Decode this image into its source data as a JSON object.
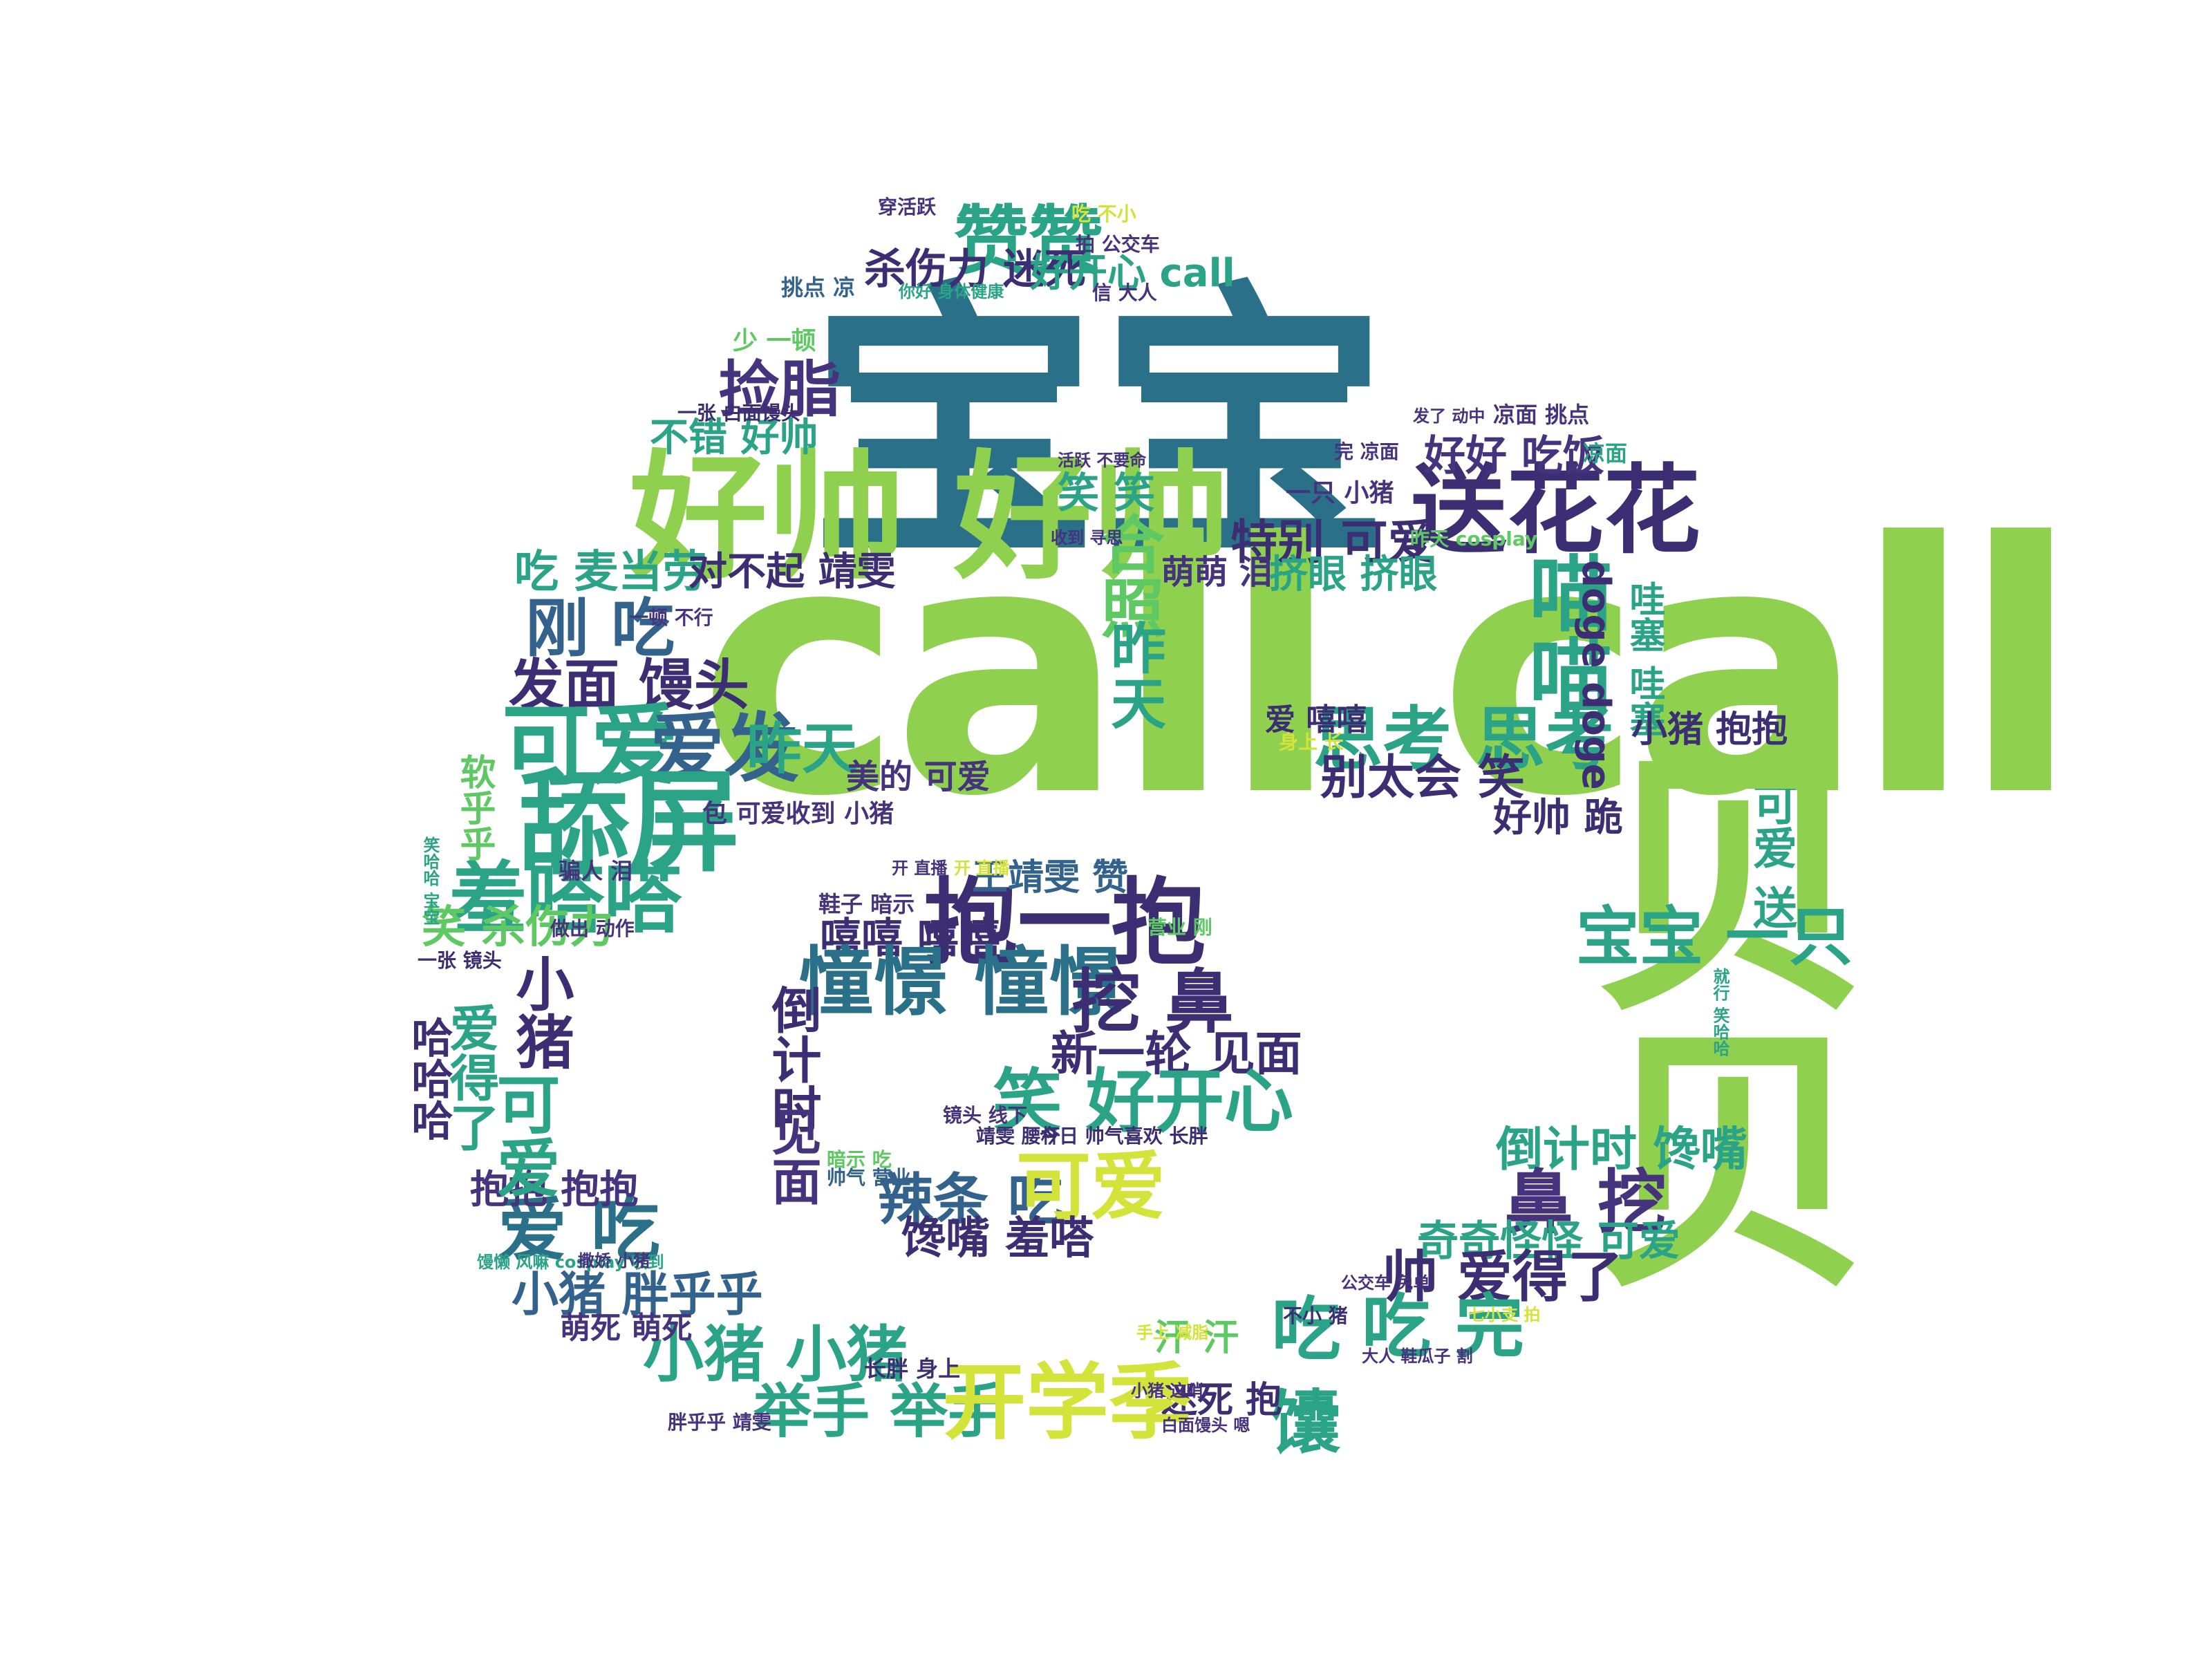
{
  "words": [
    {
      "text": "宝宝",
      "fs": 210,
      "c": "c1"
    },
    {
      "text": "call call",
      "fs": 250,
      "c": "c2"
    },
    {
      "text": "好帅 好帅",
      "fs": 110,
      "c": "c2"
    },
    {
      "text": "赞赞",
      "fs": 58,
      "c": "c4"
    },
    {
      "text": "杀伤力 迷死",
      "fs": 34,
      "c": "c3"
    },
    {
      "text": "好开心 call",
      "fs": 32,
      "c": "c4"
    },
    {
      "text": "捡脂",
      "fs": 48,
      "c": "c6"
    },
    {
      "text": "不错 好帅",
      "fs": 32,
      "c": "c4"
    },
    {
      "text": "吃 麦当劳",
      "fs": 34,
      "c": "c4"
    },
    {
      "text": "对不起 靖雯",
      "fs": 32,
      "c": "c3"
    },
    {
      "text": "刚 吃",
      "fs": 50,
      "c": "c8"
    },
    {
      "text": "发面 馒头",
      "fs": 44,
      "c": "c3"
    },
    {
      "text": "可爱",
      "fs": 70,
      "c": "c4"
    },
    {
      "text": "爱发",
      "fs": 62,
      "c": "c8"
    },
    {
      "text": "昨天",
      "fs": 44,
      "c": "c4"
    },
    {
      "text": "舔屏",
      "fs": 90,
      "c": "c4"
    },
    {
      "text": "羞嗒嗒",
      "fs": 66,
      "c": "c4"
    },
    {
      "text": "笑 杀伤力",
      "fs": 38,
      "c": "c7"
    },
    {
      "text": "美的 可爱",
      "fs": 28,
      "c": "c6"
    },
    {
      "text": "包 可爱收到 小猪",
      "fs": 20,
      "c": "c6"
    },
    {
      "text": "送花花",
      "fs": 78,
      "c": "c3"
    },
    {
      "text": "好好 吃饭",
      "fs": 38,
      "c": "c6"
    },
    {
      "text": "笑 笑",
      "fs": 34,
      "c": "c4"
    },
    {
      "text": "特别 可爱",
      "fs": 40,
      "c": "c3"
    },
    {
      "text": "萌萌 泪",
      "fs": 28,
      "c": "c6"
    },
    {
      "text": "挤眼 挤眼",
      "fs": 34,
      "c": "c4"
    },
    {
      "text": "喵喵",
      "fs": 66,
      "c": "c4"
    },
    {
      "text": "合照",
      "fs": 52,
      "c": "c7"
    },
    {
      "text": "昨天",
      "fs": 46,
      "c": "c4"
    },
    {
      "text": "思考 思考",
      "fs": 56,
      "c": "c4"
    },
    {
      "text": "别太会 笑",
      "fs": 40,
      "c": "c3"
    },
    {
      "text": "爱 嘻嘻",
      "fs": 30,
      "c": "c3"
    },
    {
      "text": "doge doge",
      "fs": 34,
      "c": "c3"
    },
    {
      "text": "哇塞 哇塞",
      "fs": 30,
      "c": "c4"
    },
    {
      "text": "小猪 抱抱",
      "fs": 30,
      "c": "c3"
    },
    {
      "text": "好帅 跪",
      "fs": 32,
      "c": "c3"
    },
    {
      "text": "可爱 送",
      "fs": 36,
      "c": "c4"
    },
    {
      "text": "贝贝",
      "fs": 210,
      "c": "c2"
    },
    {
      "text": "宝宝 一只",
      "fs": 50,
      "c": "c4"
    },
    {
      "text": "倒计时 馋嘴",
      "fs": 38,
      "c": "c4"
    },
    {
      "text": "鼻 挖",
      "fs": 56,
      "c": "c6"
    },
    {
      "text": "奇奇怪怪 可爱",
      "fs": 34,
      "c": "c4"
    },
    {
      "text": "帅 爱得了",
      "fs": 44,
      "c": "c3"
    },
    {
      "text": "吃 完",
      "fs": 56,
      "c": "c4"
    },
    {
      "text": "吃 馕",
      "fs": 56,
      "c": "c4"
    },
    {
      "text": "汗 汗",
      "fs": 30,
      "c": "c7"
    },
    {
      "text": "迷死 抱",
      "fs": 30,
      "c": "c3"
    },
    {
      "text": "抱一抱",
      "fs": 76,
      "c": "c3"
    },
    {
      "text": "王靖雯 赞",
      "fs": 30,
      "c": "c8"
    },
    {
      "text": "嘻嘻 嘻嘻",
      "fs": 34,
      "c": "c3"
    },
    {
      "text": "憧憬 憧憬",
      "fs": 60,
      "c": "c1"
    },
    {
      "text": "挖 鼻",
      "fs": 56,
      "c": "c3"
    },
    {
      "text": "新一轮 见面",
      "fs": 40,
      "c": "c3"
    },
    {
      "text": "笑 好开心",
      "fs": 56,
      "c": "c4"
    },
    {
      "text": "倒计时",
      "fs": 40,
      "c": "c3"
    },
    {
      "text": "见面",
      "fs": 40,
      "c": "c6"
    },
    {
      "text": "辣条 吃",
      "fs": 44,
      "c": "c8"
    },
    {
      "text": "可爱",
      "fs": 60,
      "c": "c5"
    },
    {
      "text": "馋嘴 羞嗒",
      "fs": 36,
      "c": "c3"
    },
    {
      "text": "小猪 胖乎乎",
      "fs": 38,
      "c": "c8"
    },
    {
      "text": "小猪 小猪",
      "fs": 50,
      "c": "c4"
    },
    {
      "text": "举手 举手",
      "fs": 48,
      "c": "c4"
    },
    {
      "text": "开学季",
      "fs": 66,
      "c": "c5"
    },
    {
      "text": "爱 吃",
      "fs": 56,
      "c": "c1"
    },
    {
      "text": "抱抱 抱抱",
      "fs": 32,
      "c": "c6"
    },
    {
      "text": "萌死 萌死",
      "fs": 26,
      "c": "c6"
    },
    {
      "text": "小猪",
      "fs": 48,
      "c": "c3"
    },
    {
      "text": "可爱",
      "fs": 54,
      "c": "c4"
    },
    {
      "text": "爱得了",
      "fs": 40,
      "c": "c4"
    },
    {
      "text": "哈哈哈",
      "fs": 36,
      "c": "c3"
    },
    {
      "text": "软乎乎",
      "fs": 30,
      "c": "c7"
    },
    {
      "text": "穿活跃",
      "fs": 16,
      "c": "c6"
    },
    {
      "text": "吃 不小",
      "fs": 16,
      "c": "c5"
    },
    {
      "text": "拍 公交车",
      "fs": 16,
      "c": "c6"
    },
    {
      "text": "挑点 凉",
      "fs": 18,
      "c": "c8"
    },
    {
      "text": "你好 身体健康",
      "fs": 14,
      "c": "c4"
    },
    {
      "text": "信 大人",
      "fs": 16,
      "c": "c6"
    },
    {
      "text": "少 一顿",
      "fs": 20,
      "c": "c7"
    },
    {
      "text": "凉面 挑点",
      "fs": 18,
      "c": "c6"
    },
    {
      "text": "发了 动中",
      "fs": 14,
      "c": "c6"
    },
    {
      "text": "一张 白面馒头",
      "fs": 16,
      "c": "c3"
    },
    {
      "text": "凉面",
      "fs": 18,
      "c": "c4"
    },
    {
      "text": "完 凉面",
      "fs": 16,
      "c": "c6"
    },
    {
      "text": "活跃 不要命",
      "fs": 14,
      "c": "c6"
    },
    {
      "text": "收到 寻思",
      "fs": 14,
      "c": "c6"
    },
    {
      "text": "昨天 cosplay",
      "fs": 16,
      "c": "c7"
    },
    {
      "text": "一只 小猪",
      "fs": 20,
      "c": "c6"
    },
    {
      "text": "一顿 不行",
      "fs": 16,
      "c": "c6"
    },
    {
      "text": "大人 鞋瓜子 割",
      "fs": 14,
      "c": "c6"
    },
    {
      "text": "公交车 免单",
      "fs": 14,
      "c": "c6"
    },
    {
      "text": "身上 长",
      "fs": 16,
      "c": "c5"
    },
    {
      "text": "就行 笑哈哈",
      "fs": 14,
      "c": "c4"
    },
    {
      "text": "鞋子 暗示",
      "fs": 20,
      "c": "c6"
    },
    {
      "text": "开 直播",
      "fs": 16,
      "c": "c5"
    },
    {
      "text": "营业 刚",
      "fs": 18,
      "c": "c7"
    },
    {
      "text": "靖雯 腰杆",
      "fs": 16,
      "c": "c3"
    },
    {
      "text": "今日 帅气喜欢 长胖",
      "fs": 16,
      "c": "c3"
    },
    {
      "text": "镜头 线下",
      "fs": 16,
      "c": "c6"
    },
    {
      "text": "帅气 营业",
      "fs": 18,
      "c": "c8"
    },
    {
      "text": "暗示 吃",
      "fs": 18,
      "c": "c7"
    },
    {
      "text": "胖乎乎 靖雯",
      "fs": 16,
      "c": "c6"
    },
    {
      "text": "长胖 身上",
      "fs": 18,
      "c": "c3"
    },
    {
      "text": "白面馒头 嗯",
      "fs": 14,
      "c": "c6"
    },
    {
      "text": "小猪 这哨",
      "fs": 14,
      "c": "c6"
    },
    {
      "text": "手上 减脂",
      "fs": 14,
      "c": "c5"
    },
    {
      "text": "不小 猪",
      "fs": 18,
      "c": "c3"
    },
    {
      "text": "七小支 拍",
      "fs": 14,
      "c": "c5"
    },
    {
      "text": "馒懒 风嘛 cosplay 收到",
      "fs": 14,
      "c": "c4"
    },
    {
      "text": "撒娇 小猪",
      "fs": 14,
      "c": "c6"
    },
    {
      "text": "笑哈哈 宝宝",
      "fs": 14,
      "c": "c4"
    },
    {
      "text": "做出 动作",
      "fs": 16,
      "c": "c6"
    },
    {
      "text": "骗人 泪",
      "fs": 18,
      "c": "c6"
    },
    {
      "text": "一张 镜头",
      "fs": 16,
      "c": "c3"
    },
    {
      "text": "开 直播",
      "fs": 14,
      "c": "c6"
    }
  ]
}
